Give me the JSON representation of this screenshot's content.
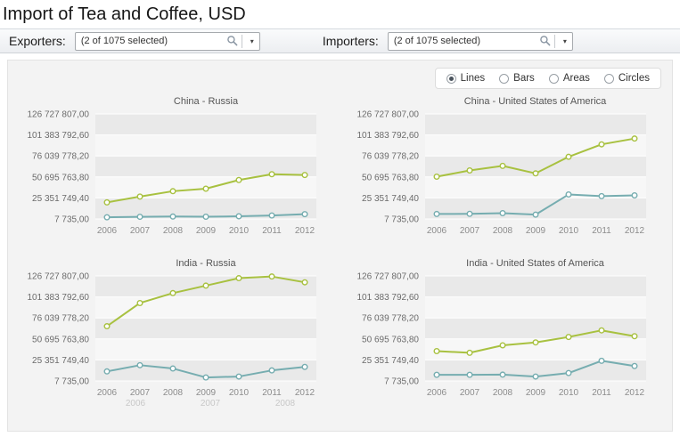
{
  "title": "Import of Tea and Coffee, USD",
  "toolbar": {
    "exporters": {
      "label": "Exporters:",
      "value": "(2 of 1075 selected)"
    },
    "importers": {
      "label": "Importers:",
      "value": "(2 of 1075 selected)"
    }
  },
  "view_options": [
    {
      "label": "Lines",
      "selected": true
    },
    {
      "label": "Bars",
      "selected": false
    },
    {
      "label": "Areas",
      "selected": false
    },
    {
      "label": "Circles",
      "selected": false
    }
  ],
  "axes": {
    "y_tick_labels": [
      "126 727 807,00",
      "101 383 792,60",
      "76 039 778,20",
      "50 695 763,80",
      "25 351 749,40",
      "7 735,00"
    ],
    "y_tick_values": [
      126727807,
      101383792.6,
      76039778.2,
      50695763.8,
      25351749.4,
      7735
    ],
    "x_tick_labels": [
      "2006",
      "2007",
      "2008",
      "2009",
      "2010",
      "2011",
      "2012"
    ]
  },
  "colors": {
    "series_green": "#a8c140",
    "series_teal": "#76adb0",
    "band_dark": "#e9e9e9",
    "band_light": "#f7f7f7"
  },
  "chart_data": [
    {
      "type": "line",
      "title": "China - Russia",
      "x": [
        "2006",
        "2007",
        "2008",
        "2009",
        "2010",
        "2011",
        "2012"
      ],
      "ylim": [
        7735,
        126727807
      ],
      "series": [
        {
          "color": "#a8c140",
          "values": [
            20000000,
            27000000,
            33500000,
            36500000,
            47000000,
            54000000,
            53000000
          ]
        },
        {
          "color": "#76adb0",
          "values": [
            2000000,
            2600000,
            2900000,
            2700000,
            3200000,
            4200000,
            5800000
          ]
        }
      ]
    },
    {
      "type": "line",
      "title": "China - United States of America",
      "x": [
        "2006",
        "2007",
        "2008",
        "2009",
        "2010",
        "2011",
        "2012"
      ],
      "ylim": [
        7735,
        126727807
      ],
      "series": [
        {
          "color": "#a8c140",
          "values": [
            51000000,
            58500000,
            64000000,
            55000000,
            75000000,
            90000000,
            97000000
          ]
        },
        {
          "color": "#76adb0",
          "values": [
            6000000,
            6200000,
            7000000,
            5200000,
            29500000,
            27500000,
            28500000
          ]
        }
      ]
    },
    {
      "type": "line",
      "title": "India - Russia",
      "x": [
        "2006",
        "2007",
        "2008",
        "2009",
        "2010",
        "2011",
        "2012"
      ],
      "ghost_x_labels": [
        "2006",
        "2007",
        "2008"
      ],
      "ylim": [
        7735,
        126727807
      ],
      "series": [
        {
          "color": "#a8c140",
          "values": [
            66000000,
            94000000,
            106000000,
            115000000,
            124000000,
            126000000,
            119000000
          ]
        },
        {
          "color": "#76adb0",
          "values": [
            11500000,
            19000000,
            15000000,
            4200000,
            5300000,
            12700000,
            16900000
          ]
        }
      ]
    },
    {
      "type": "line",
      "title": "India - United States of America",
      "x": [
        "2006",
        "2007",
        "2008",
        "2009",
        "2010",
        "2011",
        "2012"
      ],
      "ylim": [
        7735,
        126727807
      ],
      "series": [
        {
          "color": "#a8c140",
          "values": [
            36000000,
            34000000,
            43000000,
            46500000,
            53000000,
            61000000,
            54000000
          ]
        },
        {
          "color": "#76adb0",
          "values": [
            7400000,
            7400000,
            7600000,
            5300000,
            9500000,
            24300000,
            18000000
          ]
        }
      ]
    }
  ]
}
